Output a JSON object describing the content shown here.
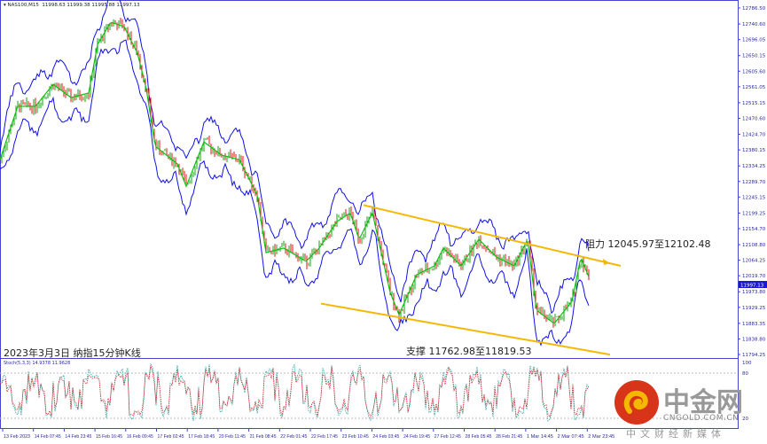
{
  "header": {
    "symbol": "NAS100,M15",
    "ohlc": "11998.63 11999.38 11995.88 11997.13"
  },
  "caption": "2023年3月3日 纳指15分钟K线",
  "annotations": {
    "resistance": "阻力 12045.97至12102.48",
    "support": "支撑 11762.98至11819.53"
  },
  "stoch_label": "Stoch(5,3,3) 14.9378 11.9628",
  "current_price": "11997.13",
  "colors": {
    "envelope": "#1010ee",
    "channel": "#f5b800",
    "up": "#10a010",
    "down": "#e01010",
    "ma": "#10c010",
    "axis": "#4444cc",
    "stoch_main": "#2aa0a0",
    "stoch_signal": "#e03030"
  },
  "chart_data": {
    "type": "line",
    "title": "",
    "xlabel": "",
    "ylabel": "",
    "ylim": [
      11794.25,
      12786.5
    ],
    "y_ticks": [
      "12786.50",
      "12740.60",
      "12696.05",
      "12650.15",
      "12605.60",
      "12561.05",
      "12515.15",
      "12470.60",
      "12424.70",
      "12380.15",
      "12334.25",
      "12289.70",
      "12245.15",
      "12199.25",
      "12154.70",
      "12108.80",
      "12064.25",
      "12019.70",
      "11973.80",
      "11929.25",
      "11883.35",
      "11838.80",
      "11794.25"
    ],
    "x_ticks": [
      "13 Feb 2023",
      "14 Feb 07:45",
      "14 Feb 23:45",
      "15 Feb 16:45",
      "16 Feb 09:45",
      "17 Feb 02:45",
      "17 Feb 18:45",
      "20 Feb 11:45",
      "21 Feb 08:45",
      "22 Feb 01:45",
      "22 Feb 17:45",
      "23 Feb 10:45",
      "24 Feb 03:45",
      "24 Feb 19:45",
      "27 Feb 12:45",
      "28 Feb 05:45",
      "28 Feb 21:45",
      "1 Mar 14:45",
      "2 Mar 07:45",
      "2 Mar 23:45"
    ],
    "stoch_levels": [
      "100",
      "80",
      "20"
    ],
    "price_path": [
      [
        0,
        12352
      ],
      [
        20,
        12505
      ],
      [
        40,
        12505
      ],
      [
        60,
        12568
      ],
      [
        80,
        12530
      ],
      [
        100,
        12543
      ],
      [
        110,
        12682
      ],
      [
        125,
        12746
      ],
      [
        140,
        12733
      ],
      [
        155,
        12657
      ],
      [
        165,
        12555
      ],
      [
        175,
        12391
      ],
      [
        200,
        12340
      ],
      [
        210,
        12276
      ],
      [
        230,
        12403
      ],
      [
        250,
        12365
      ],
      [
        270,
        12352
      ],
      [
        290,
        12251
      ],
      [
        300,
        12086
      ],
      [
        320,
        12099
      ],
      [
        345,
        12061
      ],
      [
        360,
        12099
      ],
      [
        380,
        12175
      ],
      [
        395,
        12200
      ],
      [
        405,
        12124
      ],
      [
        420,
        12200
      ],
      [
        440,
        11972
      ],
      [
        450,
        11908
      ],
      [
        470,
        12023
      ],
      [
        490,
        12048
      ],
      [
        500,
        12099
      ],
      [
        520,
        12048
      ],
      [
        540,
        12124
      ],
      [
        560,
        12073
      ],
      [
        580,
        12048
      ],
      [
        595,
        12124
      ],
      [
        605,
        11921
      ],
      [
        625,
        11883
      ],
      [
        645,
        11946
      ],
      [
        655,
        12073
      ],
      [
        665,
        12010
      ]
    ],
    "channel_upper": [
      [
        "23 Feb 10:45",
        12222
      ],
      [
        "2 Mar 23:45",
        12048
      ]
    ],
    "channel_lower": [
      [
        "22 Feb 17:45",
        11940
      ],
      [
        "2 Mar 23:45",
        11794
      ]
    ]
  }
}
